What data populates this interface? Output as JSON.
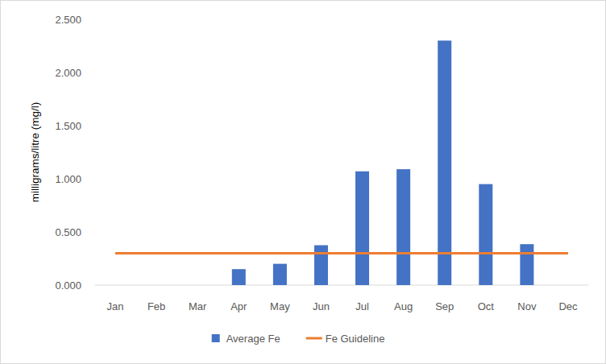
{
  "chart_data": {
    "type": "bar",
    "y_label": "milligrams/litre (mg/l)",
    "categories": [
      "Jan",
      "Feb",
      "Mar",
      "Apr",
      "May",
      "Jun",
      "Jul",
      "Aug",
      "Sep",
      "Oct",
      "Nov",
      "Dec"
    ],
    "series": [
      {
        "name": "Average Fe",
        "type": "bar",
        "color": "#4472c4",
        "values": [
          null,
          null,
          null,
          0.15,
          0.2,
          0.375,
          1.07,
          1.09,
          2.3,
          0.95,
          0.385,
          null
        ]
      },
      {
        "name": "Fe Guideline",
        "type": "line",
        "color": "#ed7d31",
        "values": [
          0.3,
          0.3,
          0.3,
          0.3,
          0.3,
          0.3,
          0.3,
          0.3,
          0.3,
          0.3,
          0.3,
          0.3
        ]
      }
    ],
    "ylim": [
      0,
      2.5
    ],
    "yticks": [
      {
        "value": 0,
        "label": "0.000"
      },
      {
        "value": 0.5,
        "label": "0.500"
      },
      {
        "value": 1,
        "label": "1.000"
      },
      {
        "value": 1.5,
        "label": "1.500"
      },
      {
        "value": 2,
        "label": "2.000"
      },
      {
        "value": 2.5,
        "label": "2.500"
      }
    ],
    "grid": false,
    "legend": "bottom"
  }
}
